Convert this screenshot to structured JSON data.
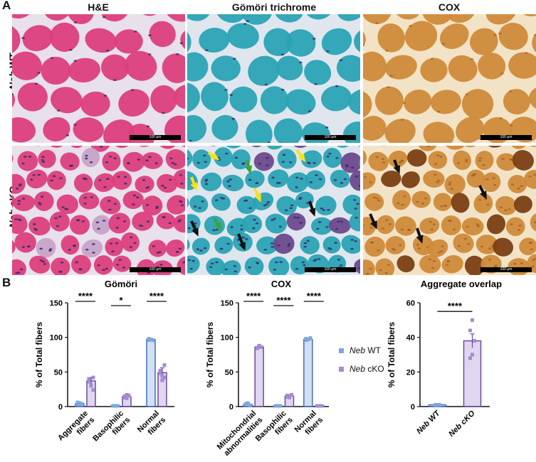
{
  "panel_a_label": "A",
  "panel_b_label": "B",
  "columns": [
    "H&E",
    "Gömöri trichrome",
    "COX"
  ],
  "rows": [
    {
      "italic": "Neb",
      "rest": " WT"
    },
    {
      "italic": "Neb",
      "rest": " cKO"
    }
  ],
  "scale_bar_label": "100 µm",
  "colors": {
    "he_bg": "#e8e0ea",
    "he_fiber": "#dc3f7c",
    "he_nuclei": "#3b2a6e",
    "gomori_bg": "#dfe6ee",
    "gomori_fiber": "#2aa3b4",
    "gomori_violet": "#6c4a8c",
    "cox_bg": "#f3e3c6",
    "cox_fiber": "#cf8a3a",
    "cox_dark": "#7a3f14",
    "arrow_yellow": "#f5e31a",
    "arrow_green": "#3ca23a",
    "arrow_black": "#111111",
    "wt": "#7ea6de",
    "cko": "#a58ad0",
    "cko_edge": "#6a4c9c",
    "wt_edge": "#3f6fbf"
  },
  "legend": [
    {
      "italic": "Neb",
      "rest": " WT"
    },
    {
      "italic": "Neb",
      "rest": " cKO"
    }
  ],
  "chart_data": [
    {
      "type": "bar",
      "title": "Gömöri",
      "ylabel": "% of Total fibers",
      "ylim": [
        0,
        150
      ],
      "yticks": [
        0,
        50,
        100,
        150
      ],
      "categories": [
        [
          "Aggregate",
          "fibers"
        ],
        [
          "Basophilic",
          "fibers"
        ],
        [
          "Normal",
          "fibers"
        ]
      ],
      "series": [
        {
          "name": "Neb WT",
          "values": [
            4,
            1,
            97
          ],
          "errors": [
            1,
            0.3,
            1
          ]
        },
        {
          "name": "Neb cKO",
          "values": [
            37,
            14,
            49
          ],
          "errors": [
            5,
            2,
            7
          ]
        }
      ],
      "points": [
        [
          [
            3,
            5,
            4,
            6,
            3
          ],
          [
            36,
            30,
            42,
            40,
            31,
            24
          ]
        ],
        [
          [
            1,
            1,
            1,
            1
          ],
          [
            13,
            12,
            16,
            15,
            17
          ]
        ],
        [
          [
            98,
            97,
            96,
            96,
            97
          ],
          [
            52,
            44,
            60,
            48,
            38,
            42
          ]
        ]
      ],
      "significance": [
        "****",
        "*",
        "****"
      ]
    },
    {
      "type": "bar",
      "title": "COX",
      "ylabel": "% of Total fibers",
      "ylim": [
        0,
        150
      ],
      "yticks": [
        0,
        50,
        100,
        150
      ],
      "categories": [
        [
          "Mitochondrial",
          "abnormalities"
        ],
        [
          "Basophilic",
          "fibers"
        ],
        [
          "Normal",
          "fibers"
        ]
      ],
      "series": [
        {
          "name": "Neb WT",
          "values": [
            3,
            1,
            97
          ],
          "errors": [
            1,
            0.3,
            1
          ]
        },
        {
          "name": "Neb cKO",
          "values": [
            86,
            15,
            1
          ],
          "errors": [
            2,
            2,
            0.3
          ]
        }
      ],
      "points": [
        [
          [
            3,
            5,
            2,
            4
          ],
          [
            84,
            88,
            86,
            85,
            87
          ]
        ],
        [
          [
            1,
            1,
            1,
            1
          ],
          [
            14,
            13,
            17,
            16,
            15
          ]
        ],
        [
          [
            98,
            97,
            99,
            96
          ],
          [
            1,
            1,
            1,
            1
          ]
        ]
      ],
      "significance": [
        "****",
        "****",
        "****"
      ]
    },
    {
      "type": "bar",
      "title": "Aggregate overlap",
      "ylabel": "% of Total fibers",
      "ylim": [
        0,
        60
      ],
      "yticks": [
        0,
        20,
        40,
        60
      ],
      "categories": [
        [
          "Neb WT"
        ],
        [
          "Neb cKO"
        ]
      ],
      "series": [
        {
          "name": "Neb WT / Neb cKO",
          "values": [
            1,
            38
          ],
          "errors": [
            0.3,
            4
          ]
        }
      ],
      "points": [
        [
          [
            1,
            1,
            1,
            1,
            1
          ]
        ],
        [
          [
            44,
            50,
            38,
            28,
            30
          ]
        ]
      ],
      "significance": [
        "****"
      ]
    }
  ]
}
